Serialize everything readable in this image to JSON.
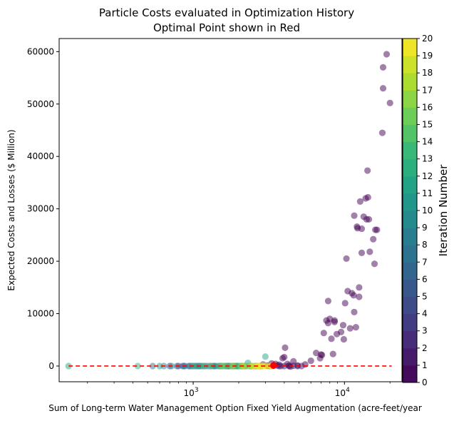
{
  "chart_data": {
    "type": "scatter",
    "title_line1": "Particle Costs evaluated in Optimization History",
    "title_line2": "Optimal Point shown in Red",
    "xlabel": "Sum of Long-term Water Management Option Fixed Yield Augmentation (acre-feet/year",
    "ylabel": "Expected Costs and Losses ($ Million)",
    "x_scale": "log",
    "xlim": [
      130,
      24000
    ],
    "ylim": [
      -3000,
      62500
    ],
    "x_tick_labels": [
      {
        "value": 1000,
        "base": "10",
        "exp": "3"
      },
      {
        "value": 10000,
        "base": "10",
        "exp": "4"
      }
    ],
    "y_ticks": [
      0,
      10000,
      20000,
      30000,
      40000,
      50000,
      60000
    ],
    "y_tick_labels": [
      "0",
      "10000",
      "20000",
      "30000",
      "40000",
      "50000",
      "60000"
    ],
    "grid": false,
    "colorbar": {
      "label": "Iteration Number",
      "min": 0,
      "max": 20,
      "ticks": [
        "0",
        "1",
        "2",
        "3",
        "4",
        "5",
        "6",
        "7",
        "8",
        "9",
        "10",
        "11",
        "12",
        "13",
        "14",
        "15",
        "16",
        "17",
        "18",
        "19",
        "20"
      ],
      "colormap": "viridis"
    },
    "reference_line": {
      "y": 0,
      "color": "#ff0000",
      "style": "dashed"
    },
    "optimal_point": {
      "x": 3400,
      "y": 100,
      "color": "#ff0000"
    },
    "marker_alpha": 0.5,
    "series": [
      {
        "iteration": 0,
        "points": [
          [
            20000,
            50200
          ],
          [
            19000,
            59500
          ],
          [
            18000,
            57000
          ],
          [
            18000,
            53000
          ],
          [
            17800,
            44500
          ],
          [
            16000,
            26000
          ],
          [
            15500,
            24200
          ],
          [
            15800,
            19500
          ],
          [
            14700,
            21800
          ],
          [
            14200,
            37300
          ],
          [
            14300,
            32200
          ],
          [
            13800,
            32000
          ],
          [
            14000,
            28000
          ],
          [
            13400,
            28500
          ],
          [
            13000,
            26200
          ],
          [
            12700,
            31400
          ],
          [
            12200,
            26300
          ],
          [
            11600,
            28700
          ],
          [
            13000,
            21600
          ],
          [
            12500,
            15000
          ],
          [
            12500,
            13200
          ],
          [
            11900,
            7400
          ],
          [
            11500,
            13500
          ],
          [
            11200,
            13900
          ],
          [
            10500,
            14300
          ],
          [
            10300,
            20500
          ],
          [
            10100,
            12000
          ],
          [
            9800,
            7800
          ],
          [
            9500,
            6500
          ],
          [
            8900,
            6100
          ],
          [
            8600,
            8700
          ],
          [
            8000,
            9000
          ],
          [
            7800,
            8200
          ],
          [
            7300,
            6300
          ],
          [
            7100,
            2100
          ],
          [
            6900,
            1500
          ],
          [
            7800,
            12400
          ],
          [
            7600,
            8700
          ],
          [
            8200,
            5200
          ],
          [
            8400,
            2300
          ],
          [
            9900,
            5100
          ],
          [
            10900,
            7200
          ],
          [
            11600,
            10300
          ],
          [
            6500,
            2500
          ],
          [
            6000,
            1000
          ],
          [
            5500,
            300
          ],
          [
            4900,
            100
          ],
          [
            4600,
            900
          ],
          [
            4400,
            -100
          ],
          [
            4200,
            400
          ],
          [
            4000,
            1700
          ],
          [
            4050,
            3500
          ],
          [
            3900,
            1500
          ],
          [
            3700,
            250
          ],
          [
            3500,
            400
          ],
          [
            3300,
            500
          ],
          [
            3100,
            50
          ],
          [
            4300,
            0
          ],
          [
            2800,
            0
          ],
          [
            7000,
            2200
          ],
          [
            8600,
            8400
          ],
          [
            12100,
            26600
          ],
          [
            14500,
            28000
          ],
          [
            16400,
            26000
          ]
        ]
      },
      {
        "iteration": 1,
        "points": [
          [
            4000,
            0
          ],
          [
            4300,
            100
          ],
          [
            4600,
            50
          ],
          [
            3800,
            0
          ],
          [
            3600,
            80
          ],
          [
            5200,
            0
          ]
        ]
      },
      {
        "iteration": 2,
        "points": [
          [
            2400,
            0
          ],
          [
            3200,
            0
          ],
          [
            3700,
            0
          ],
          [
            3100,
            80
          ],
          [
            4900,
            0
          ],
          [
            2900,
            300
          ]
        ]
      },
      {
        "iteration": 3,
        "points": [
          [
            800,
            0
          ],
          [
            950,
            0
          ],
          [
            1700,
            0
          ],
          [
            2200,
            0
          ],
          [
            2600,
            0
          ]
        ]
      },
      {
        "iteration": 4,
        "points": [
          [
            1050,
            0
          ],
          [
            1300,
            0
          ],
          [
            1950,
            0
          ],
          [
            700,
            0
          ]
        ]
      },
      {
        "iteration": 5,
        "points": [
          [
            1100,
            0
          ],
          [
            1500,
            0
          ],
          [
            1850,
            0
          ],
          [
            850,
            0
          ]
        ]
      },
      {
        "iteration": 6,
        "points": [
          [
            870,
            0
          ],
          [
            1200,
            0
          ],
          [
            1650,
            0
          ],
          [
            2100,
            0
          ]
        ]
      },
      {
        "iteration": 7,
        "points": [
          [
            780,
            0
          ],
          [
            980,
            0
          ],
          [
            1350,
            0
          ],
          [
            1750,
            0
          ]
        ]
      },
      {
        "iteration": 8,
        "points": [
          [
            880,
            0
          ],
          [
            1150,
            0
          ],
          [
            1400,
            0
          ],
          [
            540,
            0
          ]
        ]
      },
      {
        "iteration": 9,
        "points": [
          [
            930,
            0
          ],
          [
            1250,
            0
          ],
          [
            1550,
            0
          ],
          [
            640,
            0
          ]
        ]
      },
      {
        "iteration": 10,
        "points": [
          [
            1020,
            0
          ],
          [
            1380,
            0
          ],
          [
            1800,
            0
          ],
          [
            720,
            0
          ]
        ]
      },
      {
        "iteration": 11,
        "points": [
          [
            1080,
            0
          ],
          [
            1450,
            0
          ],
          [
            1900,
            0
          ],
          [
            600,
            0
          ]
        ]
      },
      {
        "iteration": 12,
        "points": [
          [
            150,
            0
          ],
          [
            1120,
            0
          ],
          [
            1600,
            0
          ],
          [
            3000,
            1800
          ],
          [
            2300,
            600
          ],
          [
            2000,
            0
          ]
        ]
      },
      {
        "iteration": 13,
        "points": [
          [
            430,
            0
          ],
          [
            1000,
            0
          ],
          [
            1700,
            0
          ],
          [
            2100,
            0
          ]
        ]
      },
      {
        "iteration": 14,
        "points": [
          [
            1180,
            0
          ],
          [
            1500,
            0
          ],
          [
            1950,
            0
          ],
          [
            2300,
            0
          ]
        ]
      },
      {
        "iteration": 15,
        "points": [
          [
            1300,
            0
          ],
          [
            1650,
            0
          ],
          [
            2050,
            0
          ],
          [
            2400,
            0
          ]
        ]
      },
      {
        "iteration": 16,
        "points": [
          [
            1550,
            0
          ],
          [
            1850,
            0
          ],
          [
            2200,
            0
          ],
          [
            2500,
            0
          ]
        ]
      },
      {
        "iteration": 17,
        "points": [
          [
            1800,
            0
          ],
          [
            2100,
            0
          ],
          [
            2450,
            0
          ],
          [
            2700,
            0
          ]
        ]
      },
      {
        "iteration": 18,
        "points": [
          [
            2150,
            0
          ],
          [
            2400,
            0
          ],
          [
            2650,
            0
          ],
          [
            2850,
            0
          ]
        ]
      },
      {
        "iteration": 19,
        "points": [
          [
            2500,
            0
          ],
          [
            2700,
            0
          ],
          [
            2900,
            0
          ],
          [
            3100,
            0
          ]
        ]
      },
      {
        "iteration": 20,
        "points": [
          [
            2650,
            0
          ],
          [
            2800,
            0
          ],
          [
            3000,
            0
          ],
          [
            3200,
            0
          ],
          [
            3300,
            0
          ]
        ]
      }
    ]
  }
}
